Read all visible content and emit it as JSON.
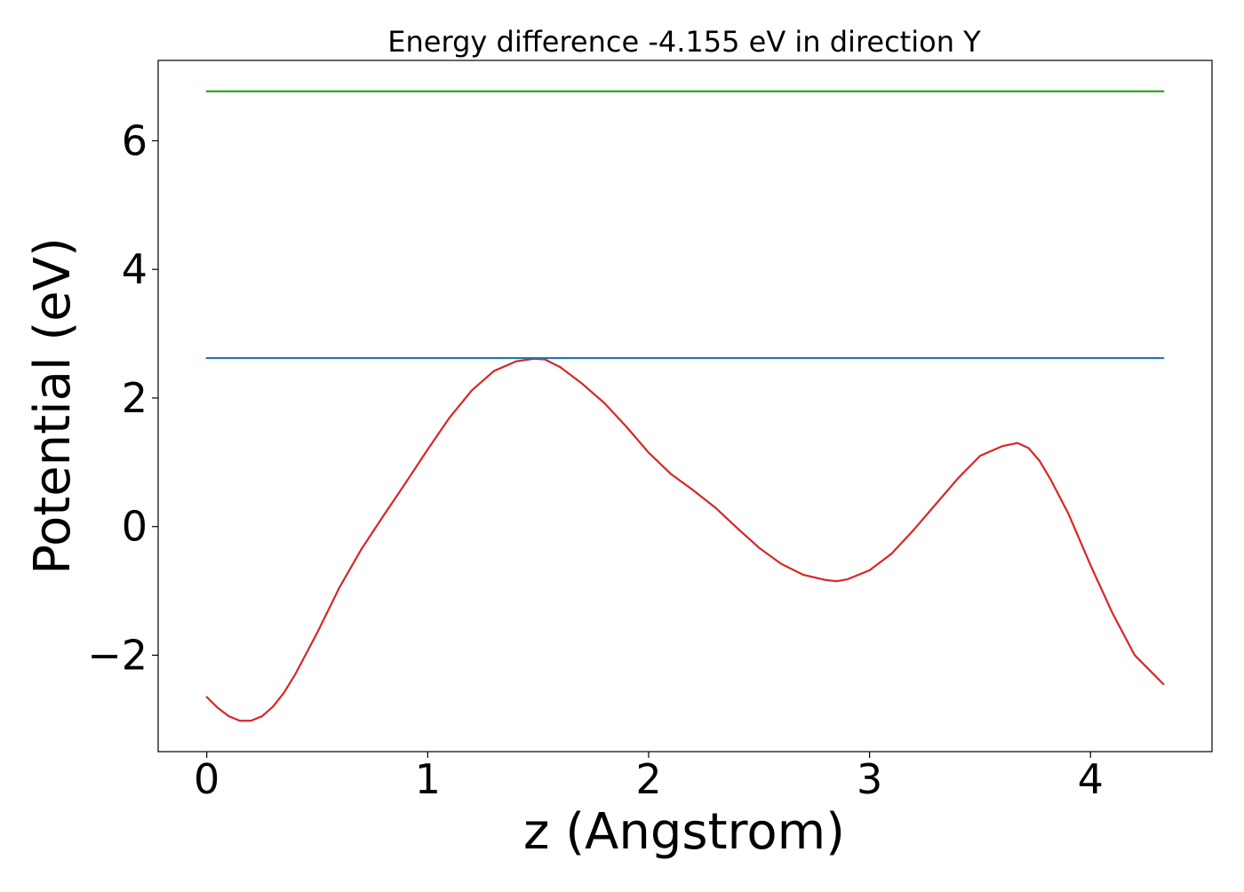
{
  "chart_data": {
    "type": "line",
    "title": "Energy difference -4.155 eV in direction Y",
    "xlabel": "z (Angstrom)",
    "ylabel": "Potential (eV)",
    "xlim": [
      -0.22,
      4.55
    ],
    "ylim": [
      -3.5,
      7.25
    ],
    "xticks": [
      0,
      1,
      2,
      3,
      4
    ],
    "yticks": [
      -2,
      0,
      2,
      4,
      6
    ],
    "xtick_labels": [
      "0",
      "1",
      "2",
      "3",
      "4"
    ],
    "ytick_labels": [
      "−2",
      "0",
      "2",
      "4",
      "6"
    ],
    "grid": false,
    "legend": "none",
    "series": [
      {
        "color": "#d62728",
        "x": [
          0,
          0.05,
          0.1,
          0.15,
          0.2,
          0.25,
          0.3,
          0.35,
          0.4,
          0.5,
          0.6,
          0.7,
          0.8,
          0.9,
          1.0,
          1.1,
          1.2,
          1.3,
          1.4,
          1.48,
          1.53,
          1.6,
          1.7,
          1.8,
          1.9,
          2.0,
          2.1,
          2.2,
          2.3,
          2.4,
          2.5,
          2.6,
          2.7,
          2.8,
          2.85,
          2.9,
          3.0,
          3.1,
          3.2,
          3.3,
          3.4,
          3.5,
          3.6,
          3.67,
          3.72,
          3.77,
          3.82,
          3.9,
          4.0,
          4.1,
          4.2,
          4.33
        ],
        "y": [
          -2.65,
          -2.82,
          -2.95,
          -3.02,
          -3.02,
          -2.95,
          -2.8,
          -2.58,
          -2.3,
          -1.65,
          -0.95,
          -0.35,
          0.17,
          0.68,
          1.2,
          1.7,
          2.12,
          2.42,
          2.57,
          2.61,
          2.6,
          2.48,
          2.22,
          1.92,
          1.55,
          1.15,
          0.82,
          0.57,
          0.3,
          -0.02,
          -0.33,
          -0.58,
          -0.75,
          -0.83,
          -0.85,
          -0.82,
          -0.68,
          -0.42,
          -0.05,
          0.35,
          0.75,
          1.1,
          1.25,
          1.3,
          1.22,
          1.02,
          0.73,
          0.2,
          -0.6,
          -1.35,
          -2.0,
          -2.45
        ]
      },
      {
        "color": "#1f77b4",
        "x": [
          0,
          4.33
        ],
        "y": [
          2.62,
          2.62
        ]
      },
      {
        "color": "#2ca02c",
        "x": [
          0,
          4.33
        ],
        "y": [
          6.77,
          6.77
        ]
      }
    ]
  }
}
